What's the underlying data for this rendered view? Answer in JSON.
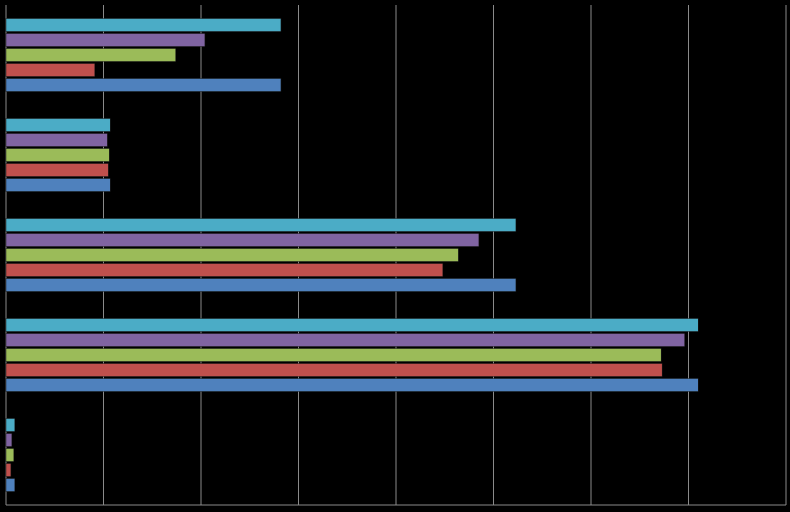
{
  "chart_data": {
    "type": "hbar",
    "categories": [
      null,
      null,
      null,
      null,
      null
    ],
    "series": [
      {
        "color": "#4f81bd",
        "values": [
          2.82,
          1.07,
          5.23,
          7.1,
          0.09
        ]
      },
      {
        "color": "#c0504d",
        "values": [
          0.91,
          1.05,
          4.48,
          6.73,
          0.05
        ]
      },
      {
        "color": "#9bbb59",
        "values": [
          1.74,
          1.06,
          4.64,
          6.72,
          0.08
        ]
      },
      {
        "color": "#8064a2",
        "values": [
          2.04,
          1.04,
          4.85,
          6.96,
          0.06
        ]
      },
      {
        "color": "#4bacc6",
        "values": [
          2.82,
          1.07,
          5.23,
          7.1,
          0.09
        ]
      }
    ],
    "xlim": [
      0,
      8
    ],
    "xticks": [
      0,
      1,
      2,
      3,
      4,
      5,
      6,
      7,
      8
    ],
    "grid": true
  }
}
